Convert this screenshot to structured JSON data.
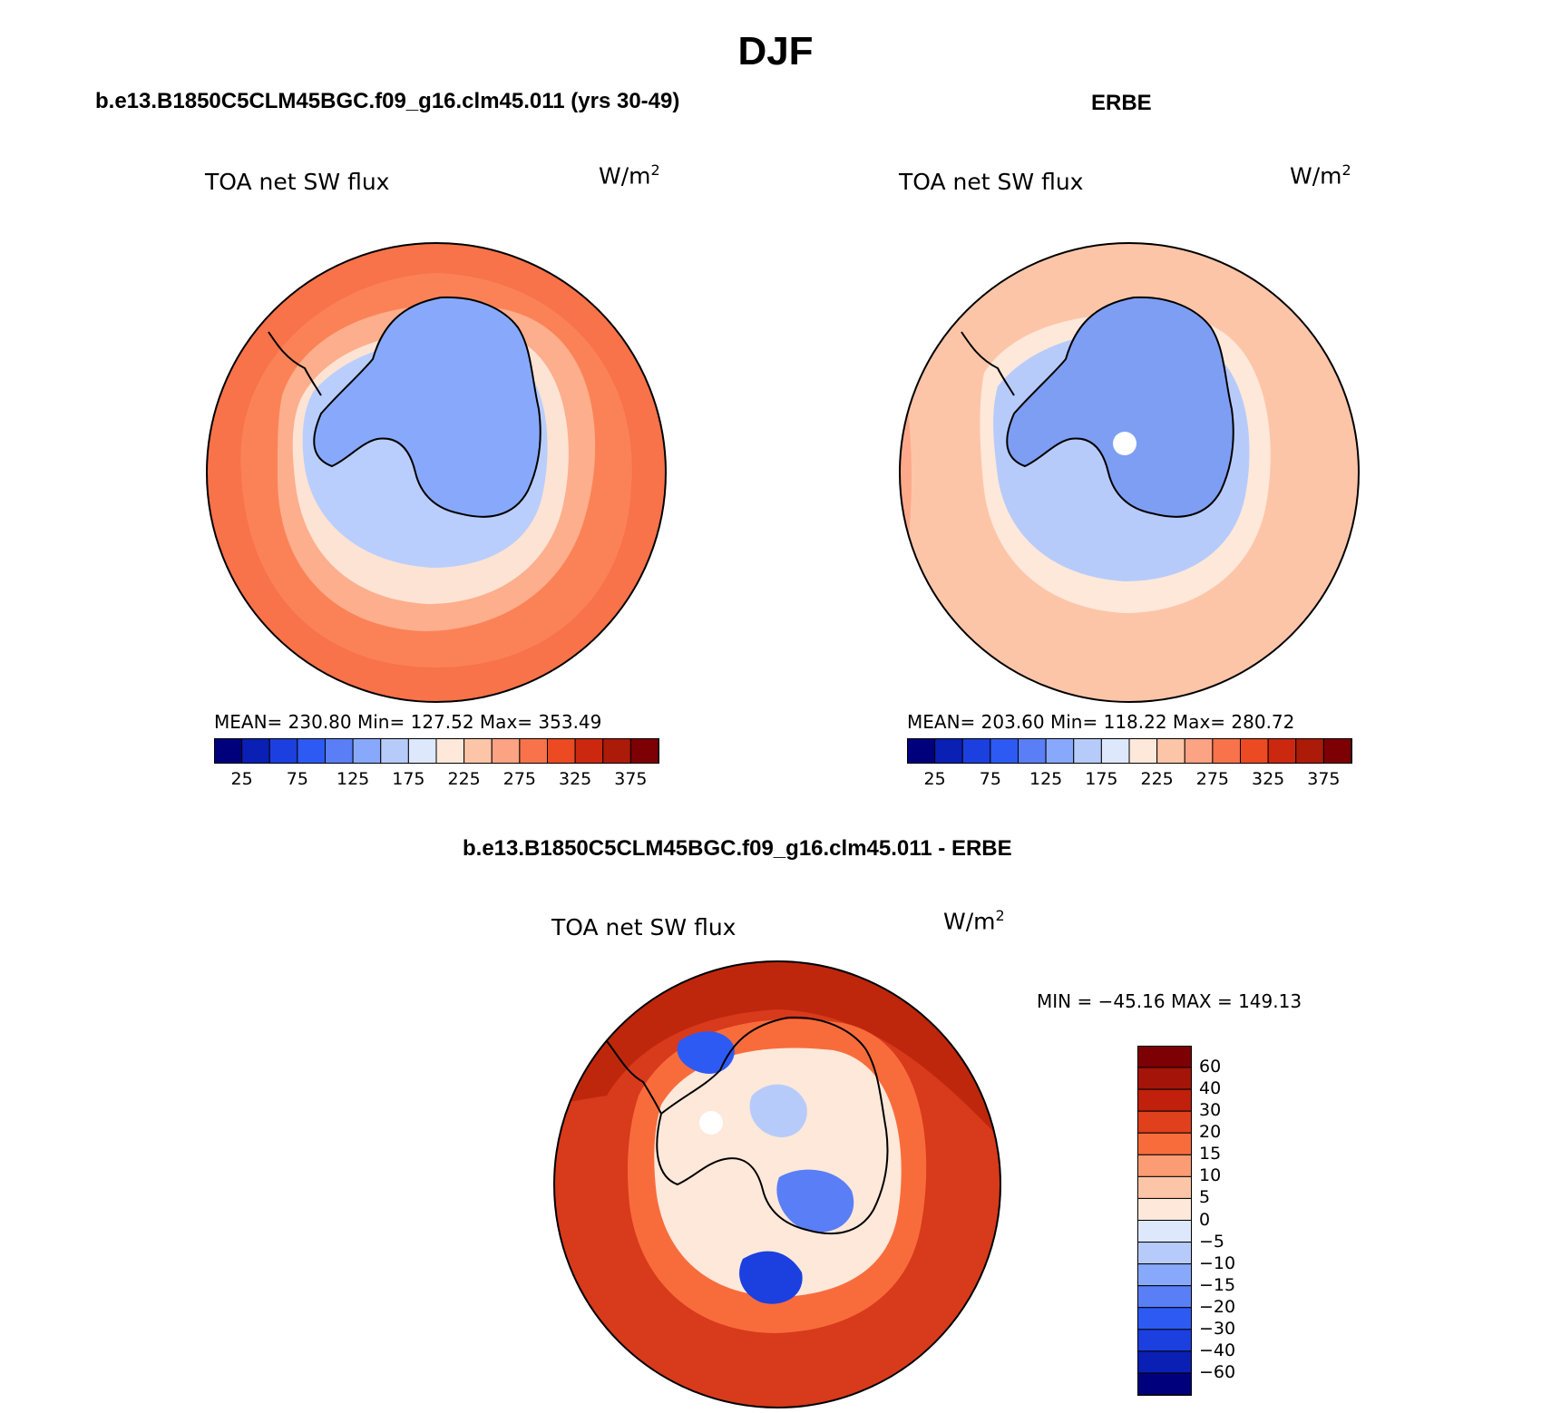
{
  "title": "DJF",
  "colors": {
    "fill_model": "#f8724a",
    "fill_obs": "#fdc5a8",
    "fill_diff": "#d83a1c",
    "land_model": "#88a9fb",
    "land_obs": "#7e9ef3",
    "ring1_model": "#b9cefc",
    "ring2_model": "#fde3d4",
    "ring3_model": "#fdae8c",
    "ring1_obs": "#b7cbfb",
    "ring2_obs": "#fde8da",
    "coast": "#000000"
  },
  "panels": [
    {
      "title": "b.e13.B1850C5CLM45BGC.f09_g16.clm45.011 (yrs 30-49)",
      "variable": "TOA net SW flux",
      "unit": "W/m",
      "unit_exp": "2",
      "stats": "MEAN= 230.80   Min= 127.52   Max= 353.49",
      "colorbar_labels": [
        "25",
        "75",
        "125",
        "175",
        "225",
        "275",
        "325",
        "375"
      ]
    },
    {
      "title": "ERBE",
      "variable": "TOA net SW flux",
      "unit": "W/m",
      "unit_exp": "2",
      "stats": "MEAN= 203.60   Min= 118.22   Max= 280.72",
      "colorbar_labels": [
        "25",
        "75",
        "125",
        "175",
        "225",
        "275",
        "325",
        "375"
      ]
    }
  ],
  "diff": {
    "title": "b.e13.B1850C5CLM45BGC.f09_g16.clm45.011 - ERBE",
    "variable": "TOA net SW flux",
    "unit": "W/m",
    "unit_exp": "2",
    "minmax": "MIN = −45.16 MAX = 149.13",
    "colorbar_labels": [
      "60",
      "40",
      "30",
      "20",
      "15",
      "10",
      "5",
      "0",
      "−5",
      "−10",
      "−15",
      "−20",
      "−30",
      "−40",
      "−60"
    ]
  },
  "colorbar_main": [
    "#00007c",
    "#0a1fb4",
    "#1c3fe0",
    "#2e5af4",
    "#5a7ef6",
    "#88a9fb",
    "#b7cbfb",
    "#dde8fc",
    "#fde8da",
    "#fdc5a8",
    "#fca384",
    "#f8724a",
    "#ec4a22",
    "#cc2810",
    "#ac1a08",
    "#7c0004"
  ],
  "colorbar_diff": [
    "#7c0004",
    "#a41408",
    "#c0200c",
    "#e0401c",
    "#f86c3c",
    "#fc9c74",
    "#fdc5a8",
    "#fde8da",
    "#dde8fc",
    "#b7cbfb",
    "#88a9fb",
    "#5a7ef6",
    "#2e5af4",
    "#1c3fe0",
    "#0a1fb4",
    "#00007c"
  ]
}
